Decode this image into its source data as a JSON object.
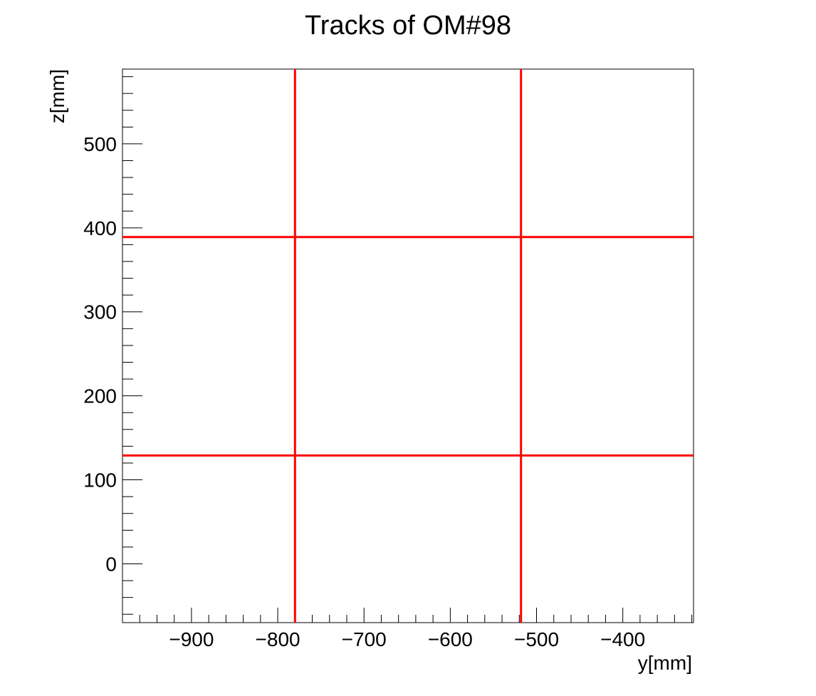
{
  "chart_data": {
    "type": "line",
    "title": "Tracks of OM#98",
    "xlabel": "y[mm]",
    "ylabel": "z[mm]",
    "xlim": [
      -980,
      -318
    ],
    "ylim": [
      -70,
      589
    ],
    "x_ticks": [
      -900,
      -800,
      -700,
      -600,
      -500,
      -400
    ],
    "y_ticks": [
      0,
      100,
      200,
      300,
      400,
      500
    ],
    "x_tick_labels": [
      "−900",
      "−800",
      "−700",
      "−600",
      "−500",
      "−400"
    ],
    "y_tick_labels": [
      "0",
      "100",
      "200",
      "300",
      "400",
      "500"
    ],
    "grid": false,
    "line_color": "#ff0000",
    "series": [
      {
        "x": [
          -780,
          -780
        ],
        "y": [
          -70,
          589
        ]
      },
      {
        "x": [
          -518,
          -518
        ],
        "y": [
          -70,
          589
        ]
      },
      {
        "x": [
          -980,
          -318
        ],
        "y": [
          389,
          389
        ]
      },
      {
        "x": [
          -980,
          -318
        ],
        "y": [
          129,
          129
        ]
      }
    ]
  }
}
